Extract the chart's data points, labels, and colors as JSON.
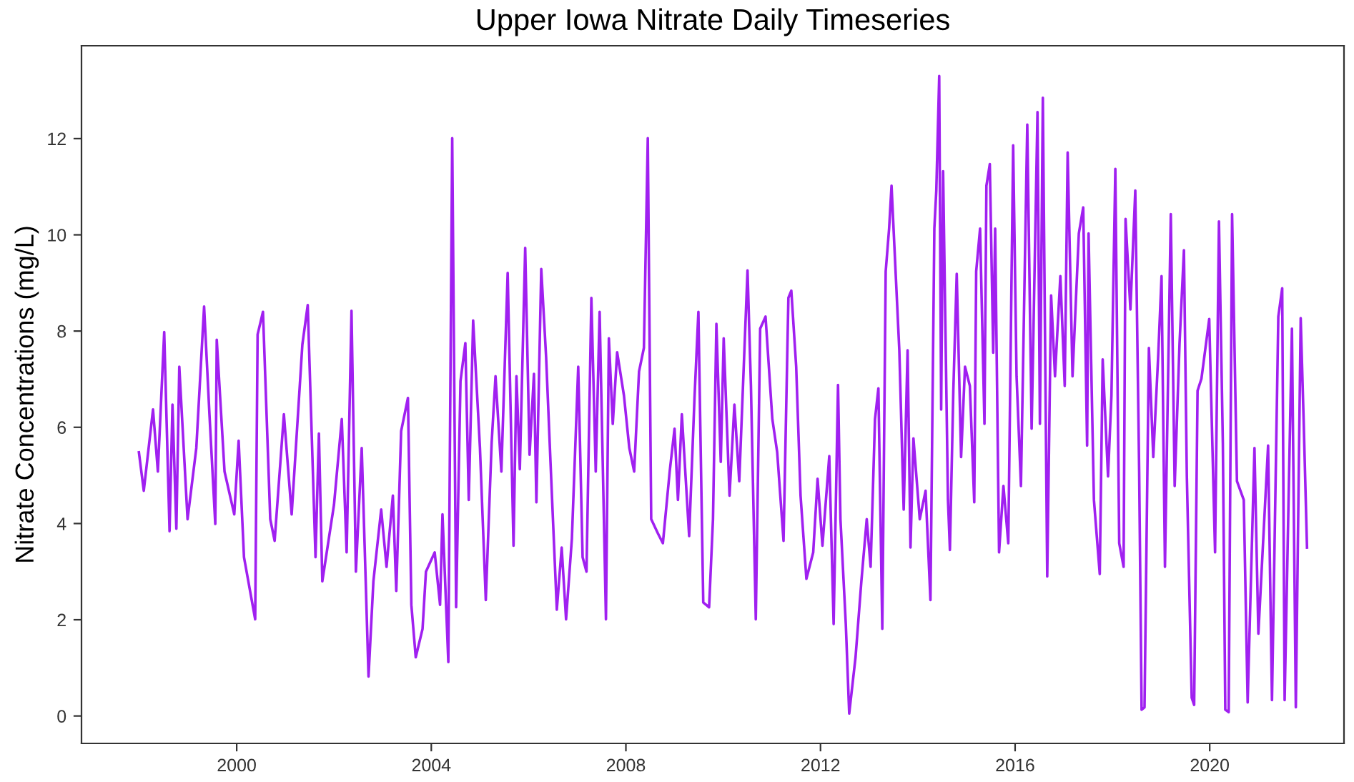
{
  "chart_data": {
    "type": "line",
    "title": "Upper Iowa Nitrate Daily Timeseries",
    "ylabel": "Nitrate Concentrations (mg/L)",
    "xlim": [
      1996.81,
      2022.76
    ],
    "xticks": [
      2000,
      2004,
      2008,
      2012,
      2016,
      2020
    ],
    "ylim": [
      -0.57,
      13.93
    ],
    "yticks": [
      0,
      2,
      4,
      6,
      8,
      10,
      12
    ],
    "grid": false,
    "marker": "none",
    "line_style": "solid",
    "series": [
      {
        "color": "#a020f0",
        "x": [
          1997.99,
          1998.09,
          1998.19,
          1998.28,
          1998.38,
          1998.51,
          1998.62,
          1998.68,
          1998.76,
          1998.82,
          1998.99,
          1999.17,
          1999.33,
          1999.44,
          1999.56,
          1999.59,
          1999.75,
          1999.95,
          2000.04,
          2000.15,
          2000.38,
          2000.43,
          2000.54,
          2000.69,
          2000.78,
          2000.97,
          2001.13,
          2001.35,
          2001.46,
          2001.62,
          2001.69,
          2001.76,
          2002.0,
          2002.16,
          2002.26,
          2002.36,
          2002.45,
          2002.57,
          2002.71,
          2002.81,
          2002.97,
          2003.08,
          2003.21,
          2003.28,
          2003.38,
          2003.52,
          2003.59,
          2003.68,
          2003.82,
          2003.89,
          2004.07,
          2004.18,
          2004.23,
          2004.35,
          2004.43,
          2004.51,
          2004.6,
          2004.7,
          2004.77,
          2004.86,
          2005.0,
          2005.12,
          2005.24,
          2005.32,
          2005.44,
          2005.57,
          2005.69,
          2005.75,
          2005.82,
          2005.93,
          2006.02,
          2006.11,
          2006.16,
          2006.26,
          2006.36,
          2006.45,
          2006.58,
          2006.68,
          2006.77,
          2006.89,
          2007.02,
          2007.11,
          2007.19,
          2007.29,
          2007.38,
          2007.46,
          2007.59,
          2007.65,
          2007.73,
          2007.82,
          2007.96,
          2008.07,
          2008.17,
          2008.27,
          2008.37,
          2008.45,
          2008.52,
          2008.66,
          2008.76,
          2008.9,
          2009.0,
          2009.07,
          2009.15,
          2009.3,
          2009.41,
          2009.49,
          2009.59,
          2009.71,
          2009.79,
          2009.86,
          2009.95,
          2010.01,
          2010.13,
          2010.23,
          2010.33,
          2010.43,
          2010.5,
          2010.57,
          2010.67,
          2010.76,
          2010.87,
          2011.01,
          2011.11,
          2011.24,
          2011.34,
          2011.4,
          2011.5,
          2011.59,
          2011.71,
          2011.85,
          2011.94,
          2012.04,
          2012.18,
          2012.27,
          2012.36,
          2012.41,
          2012.52,
          2012.59,
          2012.72,
          2012.84,
          2012.95,
          2013.03,
          2013.12,
          2013.19,
          2013.27,
          2013.34,
          2013.41,
          2013.46,
          2013.52,
          2013.62,
          2013.71,
          2013.79,
          2013.85,
          2013.91,
          2014.04,
          2014.16,
          2014.26,
          2014.34,
          2014.38,
          2014.44,
          2014.48,
          2014.52,
          2014.62,
          2014.66,
          2014.73,
          2014.8,
          2014.89,
          2014.97,
          2015.07,
          2015.16,
          2015.2,
          2015.28,
          2015.37,
          2015.41,
          2015.48,
          2015.55,
          2015.59,
          2015.67,
          2015.76,
          2015.86,
          2015.96,
          2016.03,
          2016.12,
          2016.25,
          2016.34,
          2016.46,
          2016.51,
          2016.57,
          2016.66,
          2016.74,
          2016.82,
          2016.93,
          2017.02,
          2017.08,
          2017.18,
          2017.31,
          2017.4,
          2017.48,
          2017.51,
          2017.62,
          2017.74,
          2017.8,
          2017.91,
          2017.98,
          2018.06,
          2018.14,
          2018.23,
          2018.27,
          2018.37,
          2018.47,
          2018.55,
          2018.6,
          2018.66,
          2018.75,
          2018.84,
          2018.94,
          2019.01,
          2019.08,
          2019.2,
          2019.28,
          2019.38,
          2019.47,
          2019.53,
          2019.63,
          2019.68,
          2019.75,
          2019.83,
          2019.99,
          2020.11,
          2020.19,
          2020.27,
          2020.32,
          2020.39,
          2020.46,
          2020.56,
          2020.7,
          2020.78,
          2020.92,
          2021.0,
          2021.2,
          2021.28,
          2021.41,
          2021.49,
          2021.54,
          2021.69,
          2021.77,
          2021.87,
          2021.93,
          2022.0
        ],
        "values": [
          5.48,
          4.68,
          5.57,
          6.37,
          5.08,
          7.98,
          3.84,
          6.47,
          3.89,
          7.26,
          4.09,
          5.57,
          8.51,
          6.27,
          3.99,
          7.82,
          5.08,
          4.19,
          5.72,
          3.3,
          2.01,
          7.93,
          8.4,
          4.09,
          3.64,
          6.27,
          4.19,
          7.72,
          8.54,
          3.3,
          5.87,
          2.8,
          4.39,
          6.17,
          3.4,
          8.42,
          3.0,
          5.57,
          0.82,
          2.8,
          4.29,
          3.1,
          4.58,
          2.6,
          5.92,
          6.61,
          2.31,
          1.22,
          1.81,
          3.0,
          3.4,
          2.31,
          4.19,
          1.12,
          12.01,
          2.26,
          6.96,
          7.75,
          4.49,
          8.22,
          5.57,
          2.41,
          5.67,
          7.06,
          5.08,
          9.21,
          3.54,
          7.06,
          5.13,
          9.73,
          5.43,
          7.11,
          4.44,
          9.29,
          7.46,
          5.28,
          2.21,
          3.5,
          2.01,
          3.69,
          7.26,
          3.3,
          3.0,
          8.69,
          5.08,
          8.4,
          2.01,
          7.85,
          6.07,
          7.56,
          6.66,
          5.57,
          5.08,
          7.16,
          7.65,
          12.01,
          4.09,
          3.79,
          3.59,
          5.08,
          5.97,
          4.49,
          6.27,
          3.74,
          6.61,
          8.4,
          2.36,
          2.26,
          4.09,
          8.15,
          5.28,
          7.85,
          4.58,
          6.47,
          4.88,
          7.46,
          9.26,
          6.86,
          2.01,
          8.05,
          8.3,
          6.17,
          5.48,
          3.64,
          8.69,
          8.84,
          7.26,
          4.58,
          2.85,
          3.4,
          4.93,
          3.54,
          5.4,
          1.91,
          6.88,
          4.09,
          1.91,
          0.05,
          1.22,
          2.8,
          4.09,
          3.1,
          6.17,
          6.81,
          1.81,
          9.24,
          10.13,
          11.02,
          9.73,
          7.6,
          4.29,
          7.6,
          3.5,
          5.77,
          4.09,
          4.68,
          2.41,
          10.13,
          10.92,
          13.3,
          6.37,
          11.32,
          4.49,
          3.45,
          6.76,
          9.19,
          5.38,
          7.26,
          6.86,
          4.44,
          9.24,
          10.13,
          6.07,
          11.02,
          11.47,
          7.55,
          10.13,
          3.4,
          4.78,
          3.59,
          11.86,
          7.06,
          4.78,
          12.29,
          5.97,
          12.55,
          6.07,
          12.85,
          2.9,
          8.74,
          7.06,
          9.14,
          6.86,
          11.71,
          7.06,
          10.03,
          10.57,
          5.62,
          10.03,
          4.49,
          2.95,
          7.41,
          4.98,
          6.66,
          11.37,
          3.59,
          3.1,
          10.33,
          8.45,
          10.92,
          5.08,
          0.13,
          0.18,
          7.65,
          5.38,
          7.46,
          9.14,
          3.1,
          10.43,
          4.78,
          7.75,
          9.68,
          4.98,
          0.38,
          0.23,
          6.76,
          7.01,
          8.25,
          3.4,
          10.28,
          5.67,
          0.13,
          0.08,
          10.43,
          4.88,
          4.49,
          0.28,
          5.57,
          1.71,
          5.62,
          0.33,
          8.3,
          8.89,
          0.33,
          8.05,
          0.18,
          8.27,
          6.17,
          3.5
        ]
      }
    ]
  }
}
